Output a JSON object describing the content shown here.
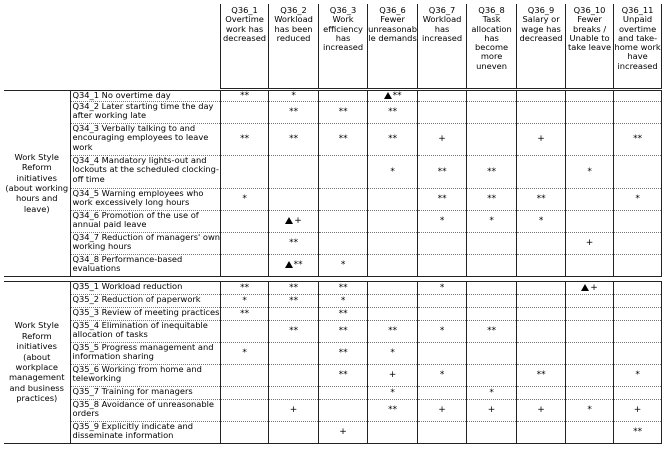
{
  "columns": [
    [
      "Q36_1",
      "Overtime",
      "work has",
      "decreased"
    ],
    [
      "Q36_2",
      "Workload",
      "has been",
      "reduced"
    ],
    [
      "Q36_3",
      "Work",
      "efficiency",
      "has",
      "increased"
    ],
    [
      "Q36_6",
      "Fewer",
      "unreasonab",
      "le demands"
    ],
    [
      "Q36_7",
      "Workload",
      "has",
      "increased"
    ],
    [
      "Q36_8",
      "Task",
      "allocation",
      "has",
      "become",
      "more",
      "uneven"
    ],
    [
      "Q36_9",
      "Salary or",
      "wage has",
      "decreased"
    ],
    [
      "Q36_10",
      "Fewer",
      "breaks /",
      "Unable to",
      "take leave"
    ],
    [
      "Q36_11",
      "Unpaid",
      "overtime",
      "and take-",
      "home work",
      "have",
      "increased"
    ]
  ],
  "sections": [
    {
      "label": [
        "Work Style",
        "Reform",
        "initiatives",
        "(about working",
        "hours and",
        "leave)"
      ],
      "rows": [
        {
          "label": [
            "Q34_1 No overtime day"
          ],
          "marks": [
            "**",
            "*",
            "",
            "▲**",
            "",
            "",
            "",
            "",
            ""
          ]
        },
        {
          "label": [
            "Q34_2 Later starting time the day",
            "after working late"
          ],
          "marks": [
            "",
            "**",
            "**",
            "**",
            "",
            "",
            "",
            "",
            ""
          ]
        },
        {
          "label": [
            "Q34_3 Verbally talking to and",
            "encouraging employees to leave",
            "work"
          ],
          "marks": [
            "**",
            "**",
            "**",
            "**",
            "+",
            "",
            "+",
            "",
            "**"
          ]
        },
        {
          "label": [
            "Q34_4 Mandatory lights-out and",
            "lockouts at the scheduled clocking-",
            "off time"
          ],
          "marks": [
            "",
            "",
            "",
            "*",
            "**",
            "**",
            "",
            "*",
            ""
          ]
        },
        {
          "label": [
            "Q34_5 Warning employees who",
            "work excessively long hours"
          ],
          "marks": [
            "*",
            "",
            "",
            "",
            "**",
            "**",
            "**",
            "",
            "*"
          ]
        },
        {
          "label": [
            "Q34_6 Promotion of the use of",
            "annual paid leave"
          ],
          "marks": [
            "",
            "▲+",
            "",
            "",
            "*",
            "*",
            "*",
            "",
            ""
          ]
        },
        {
          "label": [
            "Q34_7 Reduction of managers' own",
            "working hours"
          ],
          "marks": [
            "",
            "**",
            "",
            "",
            "",
            "",
            "",
            "+",
            ""
          ]
        },
        {
          "label": [
            "Q34_8 Performance-based",
            "evaluations"
          ],
          "marks": [
            "",
            "▲**",
            "*",
            "",
            "",
            "",
            "",
            "",
            ""
          ]
        }
      ]
    },
    {
      "label": [
        "Work Style",
        "Reform",
        "initiatives",
        "(about",
        "workplace",
        "management",
        "and business",
        "practices)"
      ],
      "rows": [
        {
          "label": [
            "Q35_1 Workload reduction"
          ],
          "marks": [
            "**",
            "**",
            "**",
            "",
            "*",
            "",
            "",
            "▲+",
            ""
          ]
        },
        {
          "label": [
            "Q35_2 Reduction of paperwork"
          ],
          "marks": [
            "*",
            "**",
            "*",
            "",
            "",
            "",
            "",
            "",
            ""
          ]
        },
        {
          "label": [
            "Q35_3 Review of meeting practices"
          ],
          "marks": [
            "**",
            "",
            "**",
            "",
            "",
            "",
            "",
            "",
            ""
          ]
        },
        {
          "label": [
            "Q35_4 Elimination of inequitable",
            "allocation of tasks"
          ],
          "marks": [
            "",
            "**",
            "**",
            "**",
            "*",
            "**",
            "",
            "",
            ""
          ]
        },
        {
          "label": [
            "Q35_5 Progress management and",
            "information sharing"
          ],
          "marks": [
            "*",
            "",
            "**",
            "*",
            "",
            "",
            "",
            "",
            ""
          ]
        },
        {
          "label": [
            "Q35_6 Working from home and",
            "teleworking"
          ],
          "marks": [
            "",
            "",
            "**",
            "+",
            "*",
            "",
            "**",
            "",
            "*"
          ]
        },
        {
          "label": [
            "Q35_7 Training for managers"
          ],
          "marks": [
            "",
            "",
            "",
            "*",
            "",
            "*",
            "",
            "",
            ""
          ]
        },
        {
          "label": [
            "Q35_8 Avoidance of unreasonable",
            "orders"
          ],
          "marks": [
            "",
            "+",
            "",
            "**",
            "+",
            "+",
            "+",
            "*",
            "+"
          ]
        },
        {
          "label": [
            "Q35_9 Explicitly indicate and",
            "disseminate information"
          ],
          "marks": [
            "",
            "",
            "+",
            "",
            "",
            "",
            "",
            "",
            "**"
          ]
        }
      ]
    }
  ]
}
